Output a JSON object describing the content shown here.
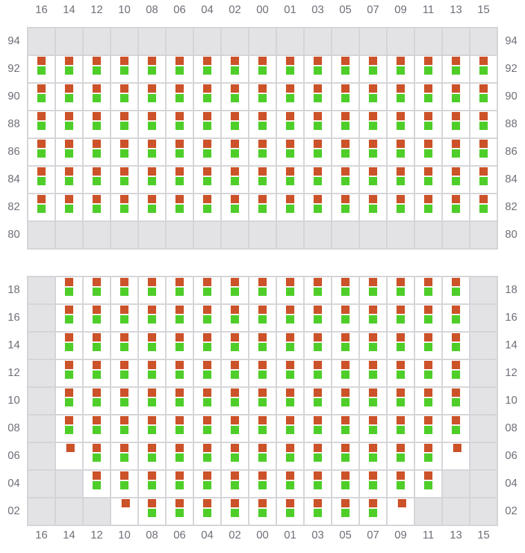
{
  "colors": {
    "occupied_a": "#cc5229",
    "occupied_b": "#4fce2a",
    "unavailable": "#e3e3e6",
    "border": "#d4d4d8",
    "label": "#6e6e78"
  },
  "columns": [
    "16",
    "14",
    "12",
    "10",
    "08",
    "06",
    "04",
    "02",
    "00",
    "01",
    "03",
    "05",
    "07",
    "09",
    "11",
    "13",
    "15"
  ],
  "legend_codes": {
    "B": "red and green markers",
    "R": "red marker only",
    "G": "unavailable (gray)"
  },
  "upper_block": {
    "rows": [
      {
        "label": "94",
        "cells": "GGGGGGGGGGGGGGGGG"
      },
      {
        "label": "92",
        "cells": "BBBBBBBBBBBBBBBBB"
      },
      {
        "label": "90",
        "cells": "BBBBBBBBBBBBBBBBB"
      },
      {
        "label": "88",
        "cells": "BBBBBBBBBBBBBBBBB"
      },
      {
        "label": "86",
        "cells": "BBBBBBBBBBBBBBBBB"
      },
      {
        "label": "84",
        "cells": "BBBBBBBBBBBBBBBBB"
      },
      {
        "label": "82",
        "cells": "BBBBBBBBBBBBBBBBB"
      },
      {
        "label": "80",
        "cells": "GGGGGGGGGGGGGGGGG"
      }
    ]
  },
  "lower_block": {
    "rows": [
      {
        "label": "18",
        "cells": "GBBBBBBBBBBBBBBBG"
      },
      {
        "label": "16",
        "cells": "GBBBBBBBBBBBBBBBG"
      },
      {
        "label": "14",
        "cells": "GBBBBBBBBBBBBBBBG"
      },
      {
        "label": "12",
        "cells": "GBBBBBBBBBBBBBBBG"
      },
      {
        "label": "10",
        "cells": "GBBBBBBBBBBBBBBBG"
      },
      {
        "label": "08",
        "cells": "GBBBBBBBBBBBBBBBG"
      },
      {
        "label": "06",
        "cells": "GRBBBBBBBBBBBBBRG"
      },
      {
        "label": "04",
        "cells": "GGBBBBBBBBBBBBBGG"
      },
      {
        "label": "02",
        "cells": "GGGRBBBBBBBBBRGGG"
      }
    ]
  }
}
